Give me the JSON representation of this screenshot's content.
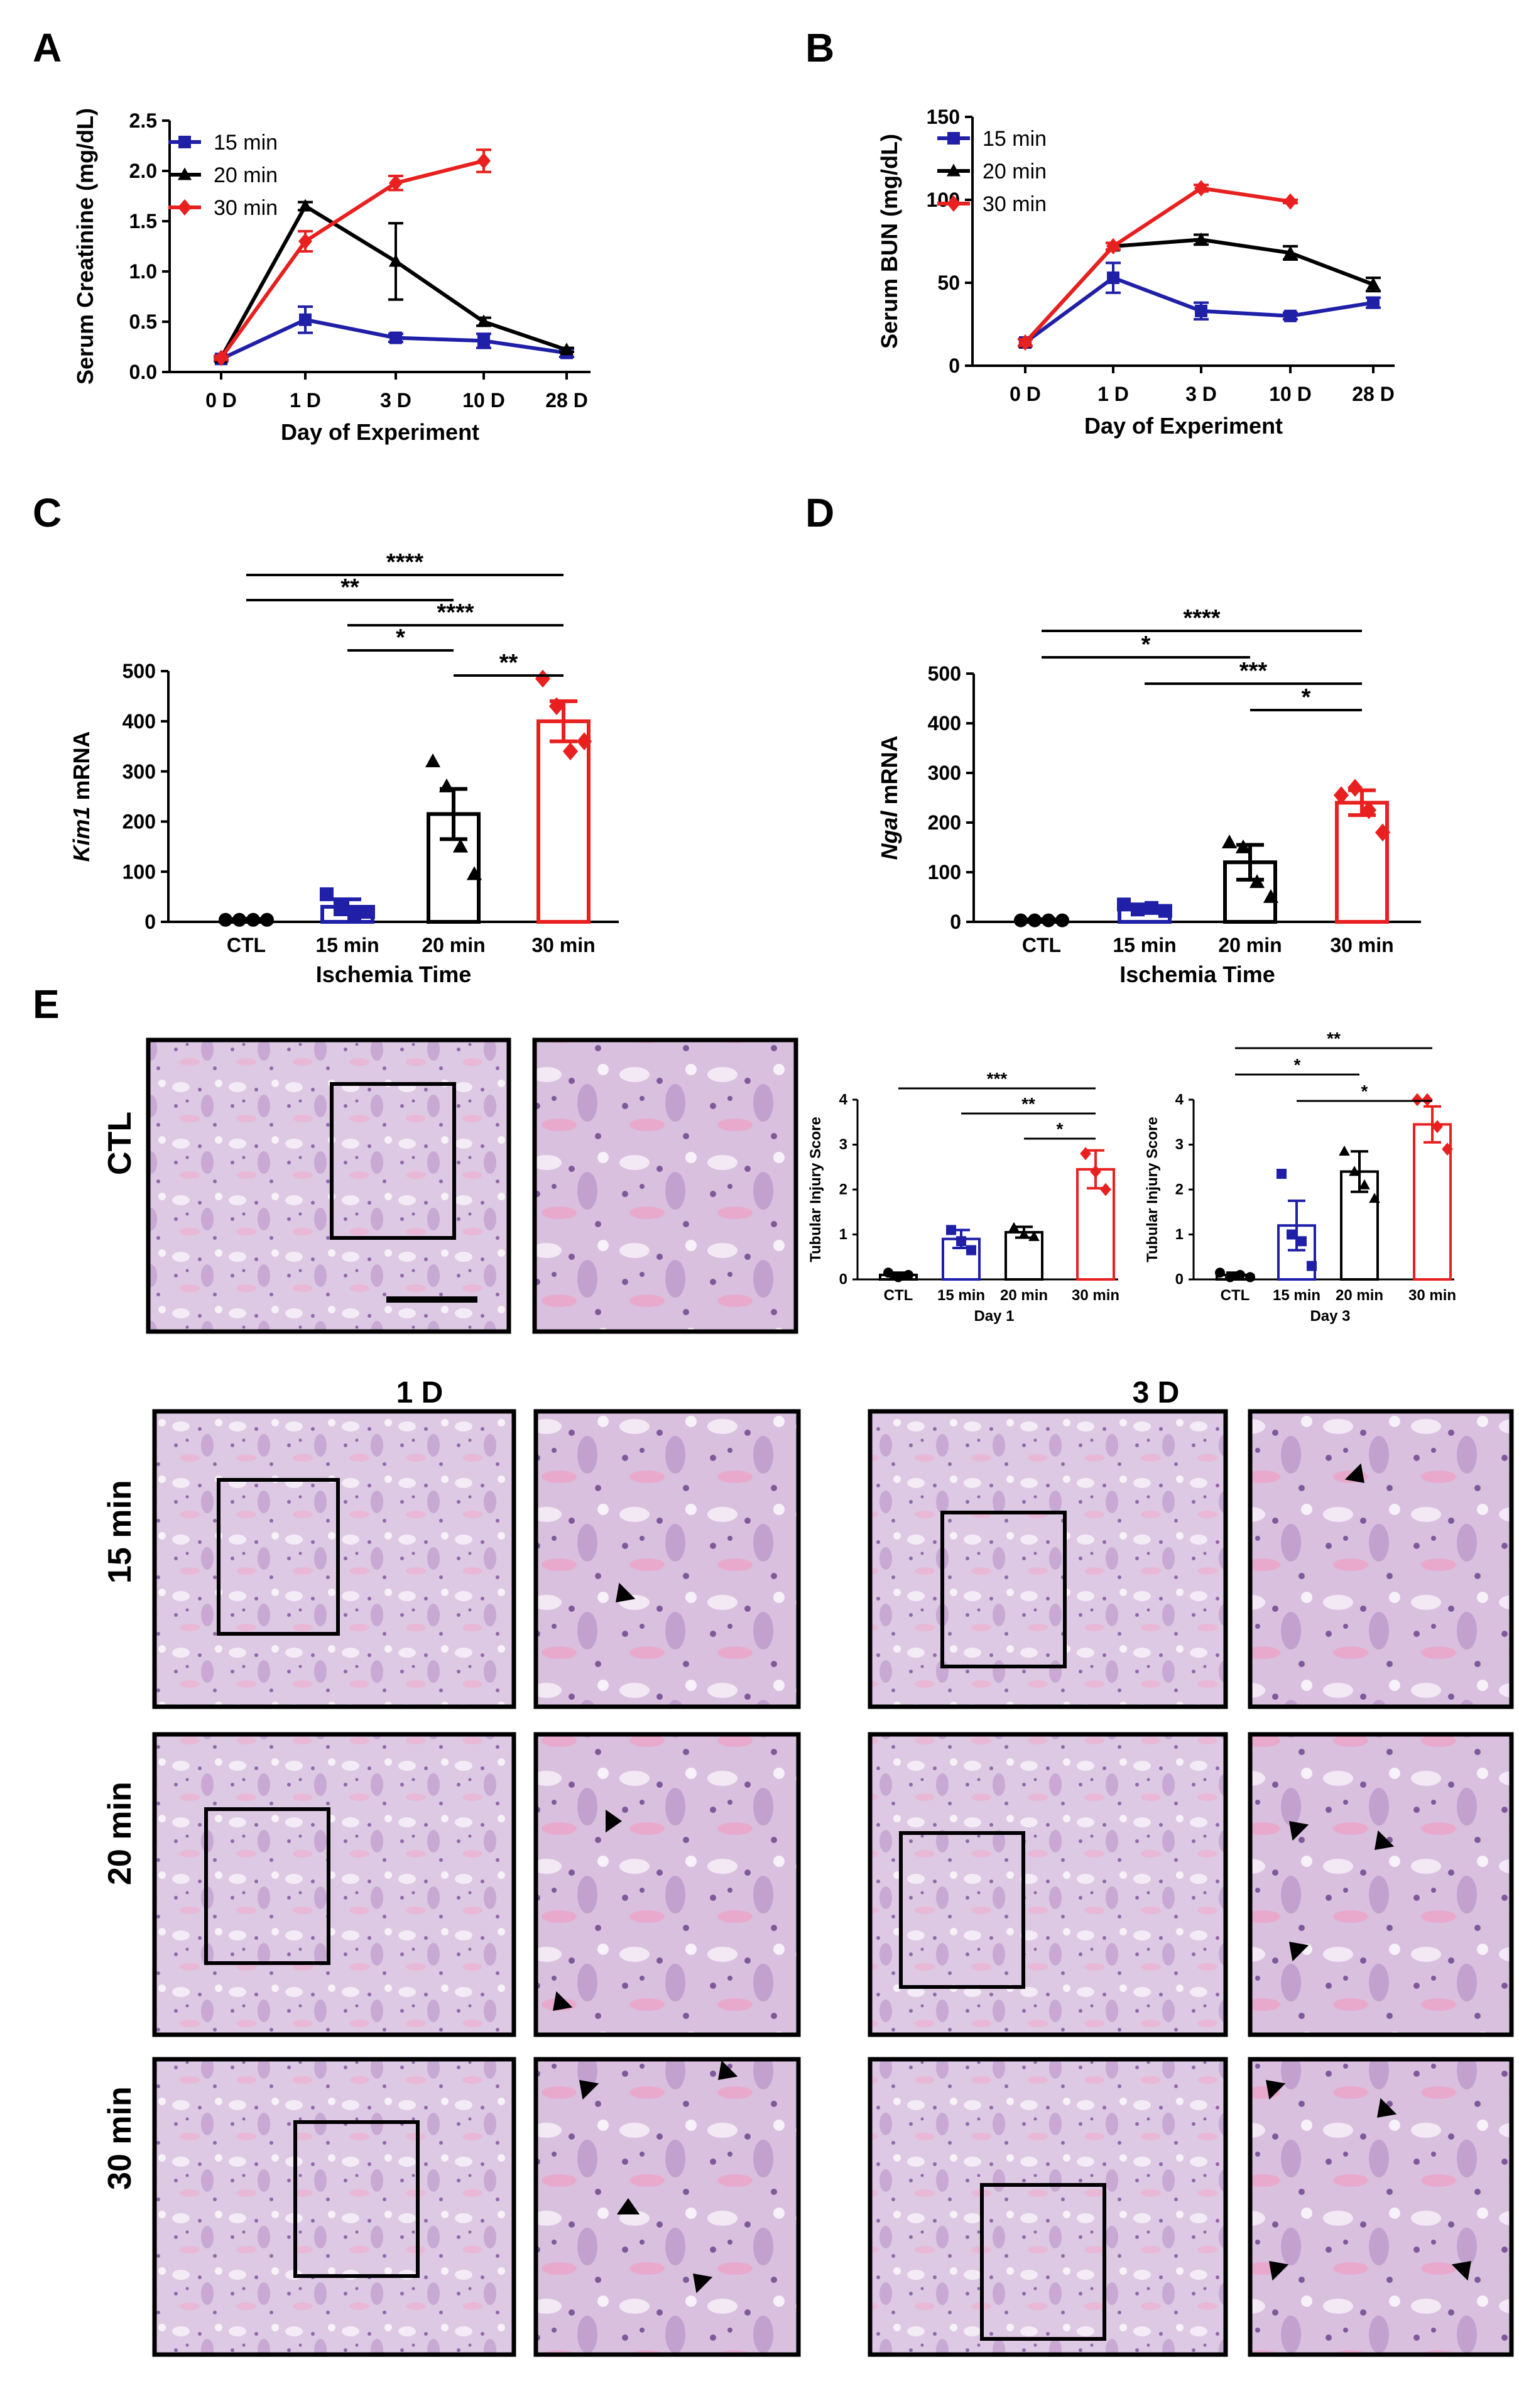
{
  "panels": {
    "A": "A",
    "B": "B",
    "C": "C",
    "D": "D",
    "E": "E"
  },
  "chart_data": [
    {
      "id": "A",
      "type": "line",
      "ylabel": "Serum Creatinine (mg/dL)",
      "xlabel": "Day of Experiment",
      "categories": [
        "0 D",
        "1 D",
        "3 D",
        "10 D",
        "28 D"
      ],
      "yticks": [
        "0.0",
        "0.5",
        "1.0",
        "1.5",
        "2.0",
        "2.5"
      ],
      "ylim": [
        0,
        2.5
      ],
      "legend_position": "top-left",
      "series": [
        {
          "name": "15 min",
          "color": "#1f1fa8",
          "marker": "square",
          "values": [
            0.13,
            0.52,
            0.34,
            0.31,
            0.19
          ],
          "errors": [
            0.02,
            0.13,
            0.04,
            0.07,
            0.04
          ]
        },
        {
          "name": "20 min",
          "color": "#000000",
          "marker": "triangle",
          "values": [
            0.14,
            1.65,
            1.1,
            0.5,
            0.22
          ],
          "errors": [
            0.02,
            0.04,
            0.38,
            0.04,
            0.02
          ]
        },
        {
          "name": "30 min",
          "color": "#e8201f",
          "marker": "diamond",
          "values": [
            0.14,
            1.3,
            1.88,
            2.1,
            null
          ],
          "errors": [
            0.02,
            0.1,
            0.07,
            0.11,
            null
          ]
        }
      ]
    },
    {
      "id": "B",
      "type": "line",
      "ylabel": "Serum BUN (mg/dL)",
      "xlabel": "Day of Experiment",
      "categories": [
        "0 D",
        "1 D",
        "3 D",
        "10 D",
        "28 D"
      ],
      "yticks": [
        "0",
        "50",
        "100",
        "150"
      ],
      "ylim": [
        0,
        150
      ],
      "legend_position": "top-left",
      "series": [
        {
          "name": "15 min",
          "color": "#1f1fa8",
          "marker": "square",
          "values": [
            14,
            53,
            33,
            30,
            38
          ],
          "errors": [
            2,
            9,
            5,
            2,
            3
          ]
        },
        {
          "name": "20 min",
          "color": "#000000",
          "marker": "triangle",
          "values": [
            14,
            72,
            76,
            68,
            49
          ],
          "errors": [
            2,
            2,
            3,
            4,
            4
          ]
        },
        {
          "name": "30 min",
          "color": "#e8201f",
          "marker": "diamond",
          "values": [
            14,
            72,
            107,
            99,
            null
          ],
          "errors": [
            2,
            2,
            2,
            1,
            null
          ]
        }
      ]
    },
    {
      "id": "C",
      "type": "bar",
      "ylabel_gene": "Kim1",
      "ylabel_rest": " mRNA",
      "xlabel": "Ischemia Time",
      "categories": [
        "CTL",
        "15 min",
        "20 min",
        "30 min"
      ],
      "colors": [
        "#000000",
        "#1f1fa8",
        "#000000",
        "#e8201f"
      ],
      "markers": [
        "circle",
        "square",
        "triangle",
        "diamond"
      ],
      "values": [
        5,
        30,
        215,
        400
      ],
      "errors": [
        1,
        15,
        50,
        40
      ],
      "points": [
        [
          4,
          4,
          4,
          4
        ],
        [
          55,
          30,
          15,
          20
        ],
        [
          320,
          270,
          150,
          95
        ],
        [
          485,
          430,
          340,
          360
        ]
      ],
      "yticks": [
        "0",
        "100",
        "200",
        "300",
        "400",
        "500"
      ],
      "ylim": [
        0,
        500
      ],
      "significance": [
        {
          "from": 0,
          "to": 3,
          "label": "****"
        },
        {
          "from": 0,
          "to": 2,
          "label": "**"
        },
        {
          "from": 1,
          "to": 3,
          "label": "****"
        },
        {
          "from": 1,
          "to": 2,
          "label": "*"
        },
        {
          "from": 2,
          "to": 3,
          "label": "**"
        }
      ]
    },
    {
      "id": "D",
      "type": "bar",
      "ylabel_gene": "Ngal",
      "ylabel_rest": " mRNA",
      "xlabel": "Ischemia Time",
      "categories": [
        "CTL",
        "15 min",
        "20 min",
        "30 min"
      ],
      "colors": [
        "#000000",
        "#1f1fa8",
        "#000000",
        "#e8201f"
      ],
      "markers": [
        "circle",
        "square",
        "triangle",
        "diamond"
      ],
      "values": [
        4,
        28,
        120,
        240
      ],
      "errors": [
        1,
        4,
        35,
        25
      ],
      "points": [
        [
          3,
          3,
          3,
          3
        ],
        [
          35,
          25,
          28,
          22
        ],
        [
          160,
          150,
          80,
          50
        ],
        [
          255,
          270,
          225,
          180
        ]
      ],
      "yticks": [
        "0",
        "100",
        "200",
        "300",
        "400",
        "500"
      ],
      "ylim": [
        0,
        500
      ],
      "significance": [
        {
          "from": 0,
          "to": 3,
          "label": "****"
        },
        {
          "from": 0,
          "to": 2,
          "label": "*"
        },
        {
          "from": 1,
          "to": 3,
          "label": "***"
        },
        {
          "from": 2,
          "to": 3,
          "label": "*"
        }
      ]
    },
    {
      "id": "E1",
      "type": "bar",
      "ylabel": "Tubular Injury Score",
      "xlabel": "Day 1",
      "categories": [
        "CTL",
        "15 min",
        "20 min",
        "30 min"
      ],
      "colors": [
        "#000000",
        "#1f1fa8",
        "#000000",
        "#e8201f"
      ],
      "markers": [
        "circle",
        "square",
        "triangle",
        "diamond"
      ],
      "values": [
        0.1,
        0.9,
        1.05,
        2.45
      ],
      "errors": [
        0.05,
        0.2,
        0.12,
        0.42
      ],
      "points": [
        [
          0.15,
          0.05,
          0.1
        ],
        [
          1.1,
          0.85,
          0.65
        ],
        [
          1.15,
          1.0,
          0.95
        ],
        [
          2.8,
          2.4,
          2.0
        ]
      ],
      "yticks": [
        "0",
        "1",
        "2",
        "3",
        "4"
      ],
      "ylim": [
        0,
        4
      ],
      "significance": [
        {
          "from": 0,
          "to": 3,
          "label": "***"
        },
        {
          "from": 1,
          "to": 3,
          "label": "**"
        },
        {
          "from": 2,
          "to": 3,
          "label": "*"
        }
      ]
    },
    {
      "id": "E3",
      "type": "bar",
      "ylabel": "Tubular Injury Score",
      "xlabel": "Day 3",
      "categories": [
        "CTL",
        "15 min",
        "20 min",
        "30 min"
      ],
      "colors": [
        "#000000",
        "#1f1fa8",
        "#000000",
        "#e8201f"
      ],
      "markers": [
        "circle",
        "square",
        "triangle",
        "diamond"
      ],
      "values": [
        0.1,
        1.2,
        2.4,
        3.45
      ],
      "errors": [
        0.05,
        0.55,
        0.45,
        0.4
      ],
      "points": [
        [
          0.15,
          0.05,
          0.1,
          0.05
        ],
        [
          2.35,
          1.0,
          0.85,
          0.3
        ],
        [
          2.85,
          2.4,
          2.1,
          1.8
        ],
        [
          4.0,
          4.0,
          3.4,
          2.9
        ]
      ],
      "yticks": [
        "0",
        "1",
        "2",
        "3",
        "4"
      ],
      "ylim": [
        0,
        4
      ],
      "significance": [
        {
          "from": 0,
          "to": 3,
          "label": "**"
        },
        {
          "from": 0,
          "to": 2,
          "label": "*"
        },
        {
          "from": 1,
          "to": 3,
          "label": "*"
        }
      ]
    }
  ],
  "histology": {
    "row_ctl": "CTL",
    "col_1d": "1 D",
    "col_3d": "3 D",
    "rows": [
      "15 min",
      "20 min",
      "30 min"
    ]
  }
}
